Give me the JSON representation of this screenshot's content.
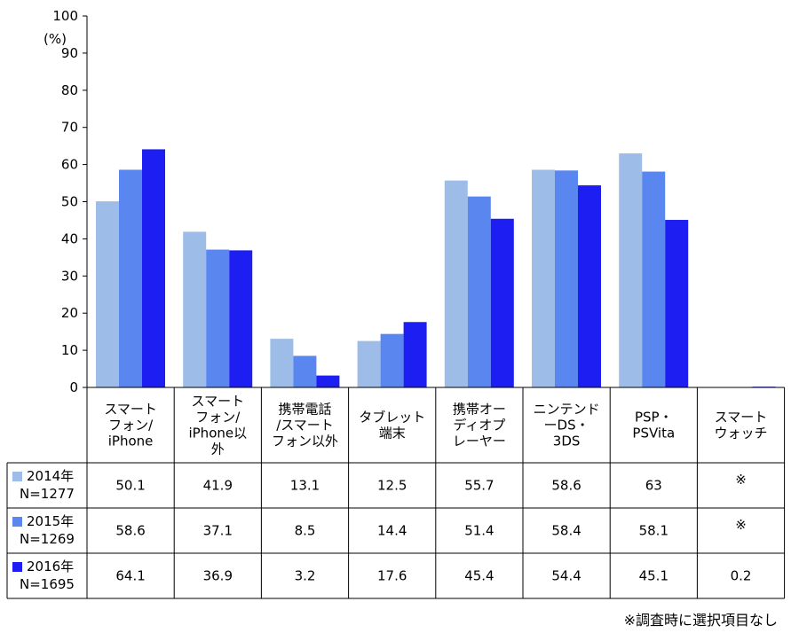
{
  "chart_data": {
    "type": "bar",
    "unit": "(%)",
    "ylim": [
      0,
      100
    ],
    "yticks": [
      0,
      10,
      20,
      30,
      40,
      50,
      60,
      70,
      80,
      90,
      100
    ],
    "categories": [
      [
        "スマート",
        "フォン/",
        "iPhone"
      ],
      [
        "スマート",
        "フォン/",
        "iPhone以",
        "外"
      ],
      [
        "携帯電話",
        "/スマート",
        "フォン以外"
      ],
      [
        "タブレット",
        "端末"
      ],
      [
        "携帯オー",
        "ディオプ",
        "レーヤー"
      ],
      [
        "ニンテンド",
        "ーDS・",
        "3DS"
      ],
      [
        "PSP・",
        "PSVita"
      ],
      [
        "スマート",
        "ウォッチ"
      ]
    ],
    "series": [
      {
        "name": [
          "2014年",
          "N=1277"
        ],
        "color": "#9dbde8",
        "values": [
          50.1,
          41.9,
          13.1,
          12.5,
          55.7,
          58.6,
          63,
          null
        ],
        "labels": [
          "50.1",
          "41.9",
          "13.1",
          "12.5",
          "55.7",
          "58.6",
          "63",
          "※"
        ]
      },
      {
        "name": [
          "2015年",
          "N=1269"
        ],
        "color": "#5a86f0",
        "values": [
          58.6,
          37.1,
          8.5,
          14.4,
          51.4,
          58.4,
          58.1,
          null
        ],
        "labels": [
          "58.6",
          "37.1",
          "8.5",
          "14.4",
          "51.4",
          "58.4",
          "58.1",
          "※"
        ]
      },
      {
        "name": [
          "2016年",
          "N=1695"
        ],
        "color": "#1c1ef2",
        "values": [
          64.1,
          36.9,
          3.2,
          17.6,
          45.4,
          54.4,
          45.1,
          0.2
        ],
        "labels": [
          "64.1",
          "36.9",
          "3.2",
          "17.6",
          "45.4",
          "54.4",
          "45.1",
          "0.2"
        ]
      }
    ],
    "footnote": "※調査時に選択項目なし",
    "grid": false,
    "legend": "table-rows"
  }
}
